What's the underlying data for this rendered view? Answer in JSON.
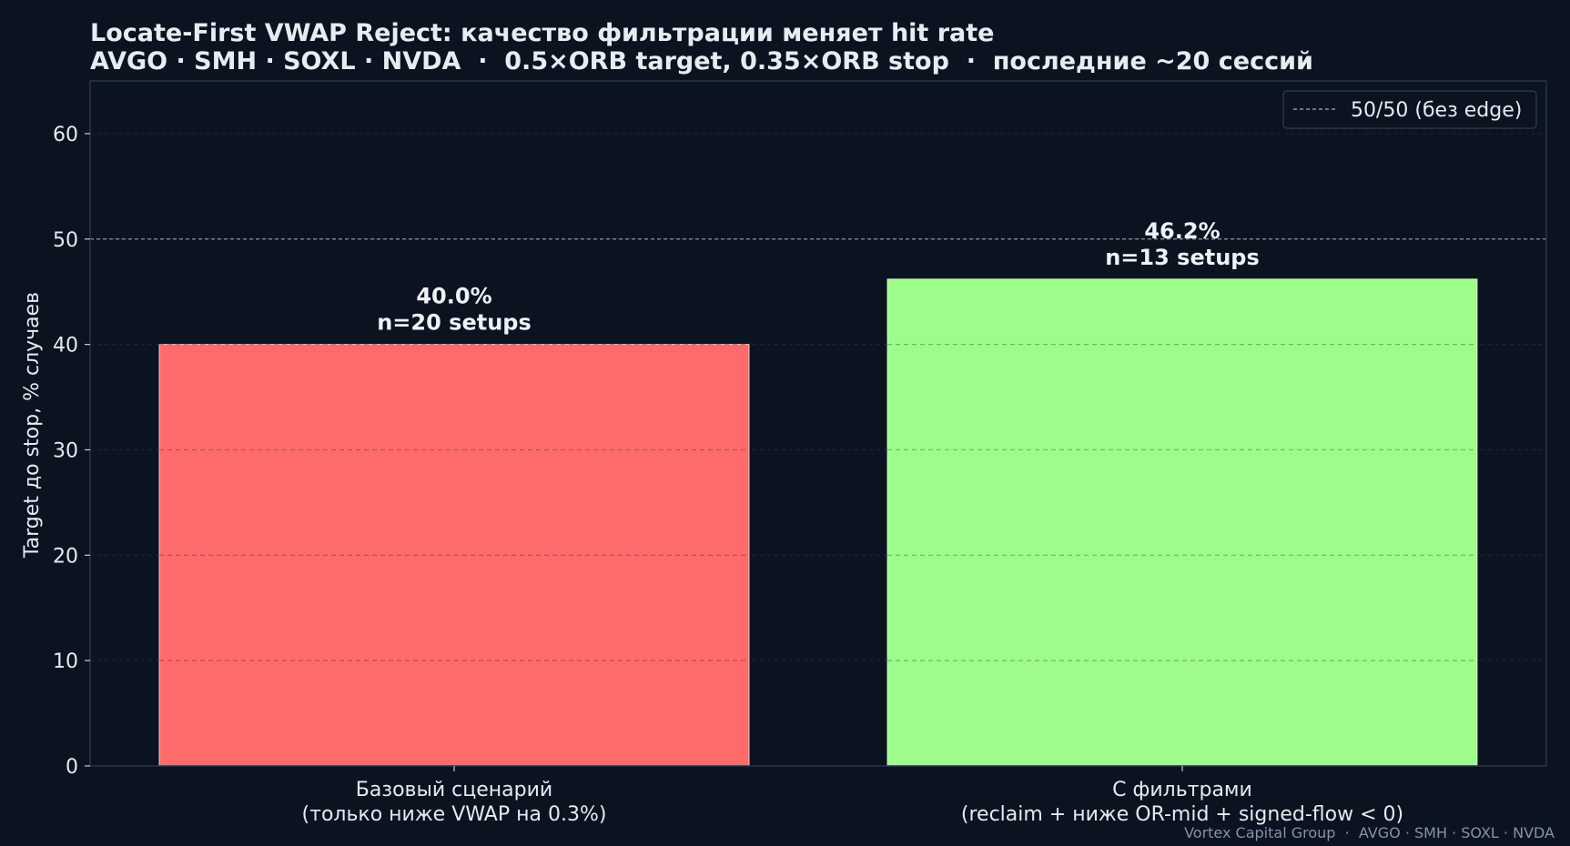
{
  "chart_data": {
    "type": "bar",
    "title": "Locate-First VWAP Reject: качество фильтрации меняет hit rate",
    "subtitle": "AVGO · SMH · SOXL · NVDA  ·  0.5×ORB target, 0.35×ORB stop  ·  последние ~20 сессий",
    "ylabel": "Target до stop, % случаев",
    "xlabel": "",
    "ylim": [
      0,
      65
    ],
    "yticks": [
      0,
      10,
      20,
      30,
      40,
      50,
      60
    ],
    "grid": true,
    "legend_position": "top-right",
    "categories": [
      {
        "line1": "Базовый сценарий",
        "line2": "(только ниже VWAP на 0.3%)"
      },
      {
        "line1": "С фильтрами",
        "line2": "(reclaim + ниже OR-mid + signed-flow < 0)"
      }
    ],
    "values": [
      40.0,
      46.2
    ],
    "data_labels": [
      {
        "pct": "40.0%",
        "n": "n=20 setups"
      },
      {
        "pct": "46.2%",
        "n": "n=13 setups"
      }
    ],
    "bar_colors": [
      "#ff6b6b",
      "#9efc8a"
    ],
    "reference_line": {
      "value": 50,
      "label": "50/50 (без edge)",
      "color": "#8a96a8"
    }
  },
  "footer": "Vortex Capital Group  ·  AVGO · SMH · SOXL · NVDA",
  "colors": {
    "background": "#0c1320",
    "axis": "#27344a",
    "text": "#e6eaf0",
    "footer": "#8592a8"
  }
}
